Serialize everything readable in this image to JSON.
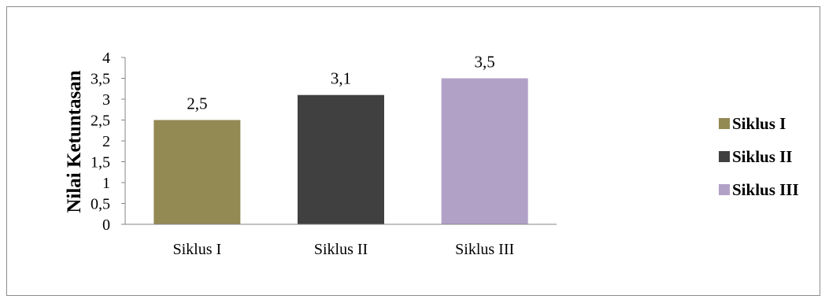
{
  "chart_data": {
    "type": "bar",
    "title": "",
    "xlabel": "",
    "ylabel": "Nilai Ketuntasan",
    "categories": [
      "Siklus I",
      "Siklus II",
      "Siklus III"
    ],
    "values": [
      2.5,
      3.1,
      3.5
    ],
    "data_labels": [
      "2,5",
      "3,1",
      "3,5"
    ],
    "colors": [
      "#938953",
      "#404040",
      "#b2a1c7"
    ],
    "ylim": [
      0,
      4
    ],
    "yticks": [
      0,
      0.5,
      1,
      1.5,
      2,
      2.5,
      3,
      3.5,
      4
    ],
    "ytick_labels": [
      "0",
      "0,5",
      "1",
      "1,5",
      "2",
      "2,5",
      "3",
      "3,5",
      "4"
    ],
    "grid": false,
    "legend": {
      "position": "right",
      "entries": [
        "Siklus I",
        "Siklus II",
        "Siklus III"
      ]
    }
  }
}
